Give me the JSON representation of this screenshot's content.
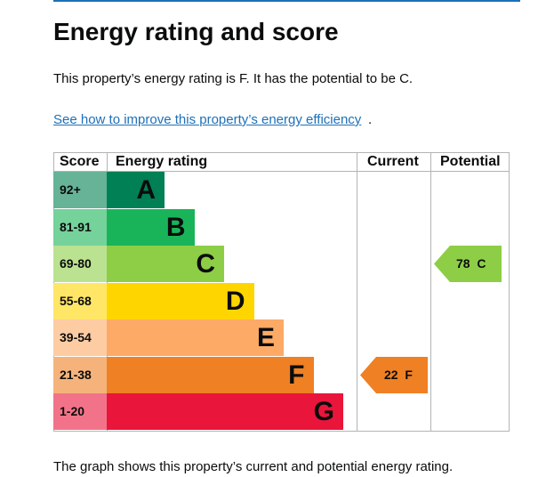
{
  "title": "Energy rating and score",
  "summary": "This property’s energy rating is F. It has the potential to be C.",
  "improve_link": "See how to improve this property’s energy efficiency",
  "improve_dot": ".",
  "footer": "The graph shows this property’s current and potential energy rating.",
  "table": {
    "headers": {
      "score": "Score",
      "rating": "Energy rating",
      "current": "Current",
      "potential": "Potential"
    },
    "bands": [
      {
        "range": "92+",
        "letter": "A",
        "color": "#008054",
        "score_bg": "#66b398"
      },
      {
        "range": "81-91",
        "letter": "B",
        "color": "#19b459",
        "score_bg": "#75d29b"
      },
      {
        "range": "69-80",
        "letter": "C",
        "color": "#8dce46",
        "score_bg": "#bbe290"
      },
      {
        "range": "55-68",
        "letter": "D",
        "color": "#ffd500",
        "score_bg": "#ffe666"
      },
      {
        "range": "39-54",
        "letter": "E",
        "color": "#fcaa65",
        "score_bg": "#fdcca3"
      },
      {
        "range": "21-38",
        "letter": "F",
        "color": "#ef8023",
        "score_bg": "#f5b37b"
      },
      {
        "range": "1-20",
        "letter": "G",
        "color": "#e9153b",
        "score_bg": "#f27389"
      }
    ],
    "current": {
      "score": 22,
      "letter": "F",
      "label": "22  F",
      "color": "#ef8023"
    },
    "potential": {
      "score": 78,
      "letter": "C",
      "label": "78  C",
      "color": "#8dce46"
    }
  }
}
